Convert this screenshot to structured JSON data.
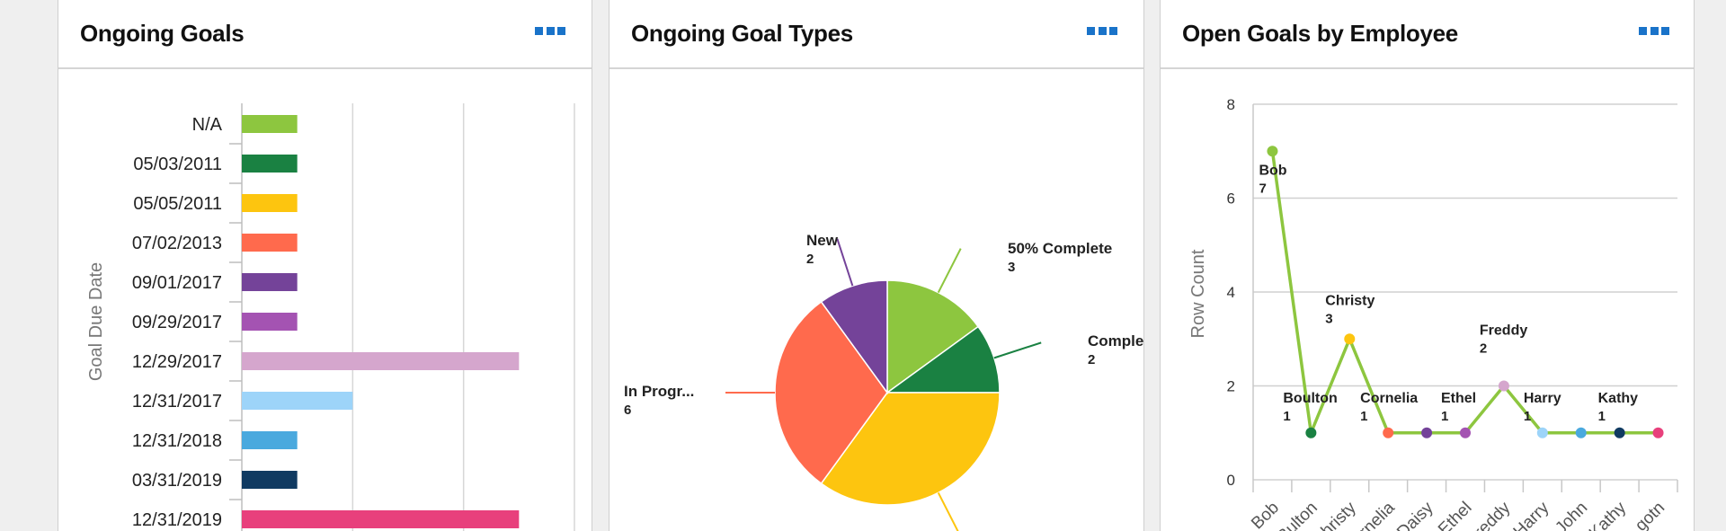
{
  "panels": {
    "goals": {
      "title": "Ongoing Goals",
      "menu_icon": "more-icon"
    },
    "types": {
      "title": "Ongoing Goal Types",
      "menu_icon": "more-icon"
    },
    "employees": {
      "title": "Open Goals by Employee",
      "menu_icon": "more-icon"
    }
  },
  "chart_data": [
    {
      "type": "bar",
      "orientation": "horizontal",
      "title": "Ongoing Goals",
      "ylabel": "Goal Due Date",
      "categories": [
        "N/A",
        "05/03/2011",
        "05/05/2011",
        "07/02/2013",
        "09/01/2017",
        "09/29/2017",
        "12/29/2017",
        "12/31/2017",
        "12/31/2018",
        "03/31/2019",
        "12/31/2019"
      ],
      "values": [
        1,
        1,
        1,
        1,
        1,
        1,
        5,
        2,
        1,
        1,
        5
      ],
      "colors": [
        "#8dc63f",
        "#1a8142",
        "#fdc50f",
        "#ff6a4d",
        "#744399",
        "#a453b2",
        "#d5a6cd",
        "#9dd4f9",
        "#4aa9de",
        "#103a61",
        "#e8407c"
      ],
      "xlim": [
        0,
        6
      ],
      "grid": true
    },
    {
      "type": "pie",
      "title": "Ongoing Goal Types",
      "slices": [
        {
          "label": "50% Complete",
          "value": 3,
          "color": "#8dc63f"
        },
        {
          "label": "Comple...",
          "value": 2,
          "color": "#1a8142"
        },
        {
          "label": "",
          "value": 7,
          "color": "#fdc50f"
        },
        {
          "label": "In Progr...",
          "value": 6,
          "color": "#ff6a4d"
        },
        {
          "label": "New",
          "value": 2,
          "color": "#744399"
        }
      ]
    },
    {
      "type": "line",
      "title": "Open Goals by Employee",
      "ylabel": "Row Count",
      "ylim": [
        0,
        8
      ],
      "yticks": [
        0,
        2,
        4,
        6,
        8
      ],
      "line_color": "#8dc63f",
      "categories": [
        "Bob",
        "Boulton",
        "Christy",
        "Cornelia",
        "Daisy",
        "Ethel",
        "Freddy",
        "Harry",
        "John",
        "Kathy",
        "gotn"
      ],
      "tick_labels": [
        "Bob",
        "Bulton",
        "Christy",
        "rnelia",
        "Daisy",
        "Ethel",
        "Freddy",
        "Harry",
        "John",
        "Kathy",
        "gotn"
      ],
      "values": [
        7,
        1,
        3,
        1,
        1,
        1,
        2,
        1,
        1,
        1,
        1
      ],
      "point_colors": [
        "#8dc63f",
        "#1a8142",
        "#fdc50f",
        "#ff6a4d",
        "#744399",
        "#a453b2",
        "#d5a6cd",
        "#9dd4f9",
        "#4aa9de",
        "#103a61",
        "#e8407c"
      ],
      "point_labels": [
        {
          "name": "Bob",
          "value": "7"
        },
        {
          "name": "Boulton",
          "value": "1"
        },
        {
          "name": "Christy",
          "value": "3"
        },
        {
          "name": "Cornelia",
          "value": "1"
        },
        null,
        {
          "name": "Ethel",
          "value": "1"
        },
        {
          "name": "Freddy",
          "value": "2"
        },
        {
          "name": "Harry",
          "value": "1"
        },
        null,
        {
          "name": "Kathy",
          "value": "1"
        },
        null
      ],
      "grid": true
    }
  ]
}
